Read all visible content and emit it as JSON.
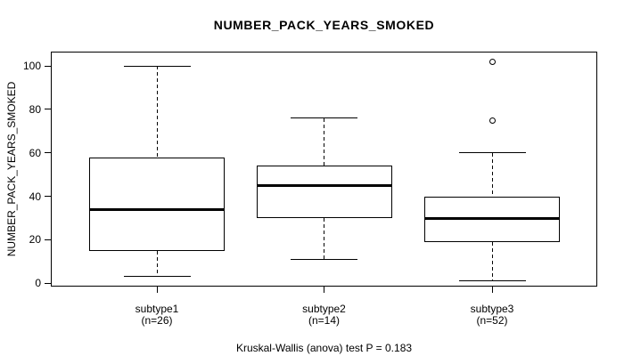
{
  "colors": {
    "foreground": "#000000",
    "background": "#ffffff"
  },
  "chart_data": {
    "type": "boxplot",
    "title": "NUMBER_PACK_YEARS_SMOKED",
    "ylabel": "NUMBER_PACK_YEARS_SMOKED",
    "xlabel": "",
    "ylim": [
      0,
      100
    ],
    "yticks": [
      0,
      20,
      40,
      60,
      80,
      100
    ],
    "grid": false,
    "legend": "none",
    "categories": [
      "subtype1",
      "subtype2",
      "subtype3"
    ],
    "series": [
      {
        "label": "subtype1",
        "n_label": "(n=26)",
        "n": 26,
        "whisker_low": 3,
        "q1": 15,
        "median": 34,
        "q3": 58,
        "whisker_high": 100,
        "outliers": []
      },
      {
        "label": "subtype2",
        "n_label": "(n=14)",
        "n": 14,
        "whisker_low": 11,
        "q1": 30,
        "median": 45,
        "q3": 54,
        "whisker_high": 76,
        "outliers": []
      },
      {
        "label": "subtype3",
        "n_label": "(n=52)",
        "n": 52,
        "whisker_low": 1,
        "q1": 19,
        "median": 30,
        "q3": 40,
        "whisker_high": 60,
        "outliers": [
          75,
          102
        ]
      }
    ],
    "annotation": "Kruskal-Wallis (anova) test P = 0.183"
  }
}
